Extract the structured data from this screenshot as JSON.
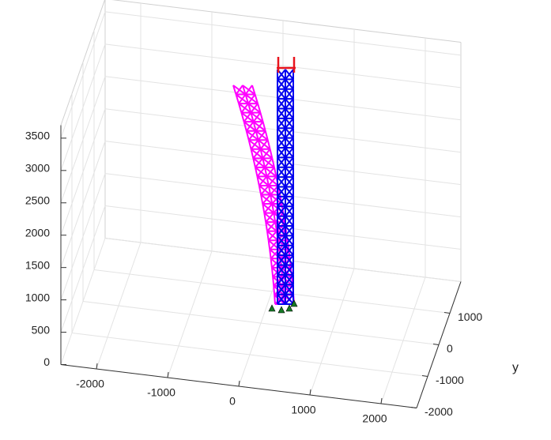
{
  "chart_data": {
    "type": "3d-truss",
    "ylabel": "y",
    "xlim": [
      -2500,
      2500
    ],
    "xticks": [
      -2000,
      -1000,
      0,
      1000,
      2000
    ],
    "ylim": [
      -2000,
      2000
    ],
    "yticks": [
      -2000,
      -1000,
      0,
      1000
    ],
    "zlim": [
      0,
      3700
    ],
    "zticks": [
      0,
      500,
      1000,
      1500,
      2000,
      2500,
      3000,
      3500
    ],
    "grid": true
  }
}
